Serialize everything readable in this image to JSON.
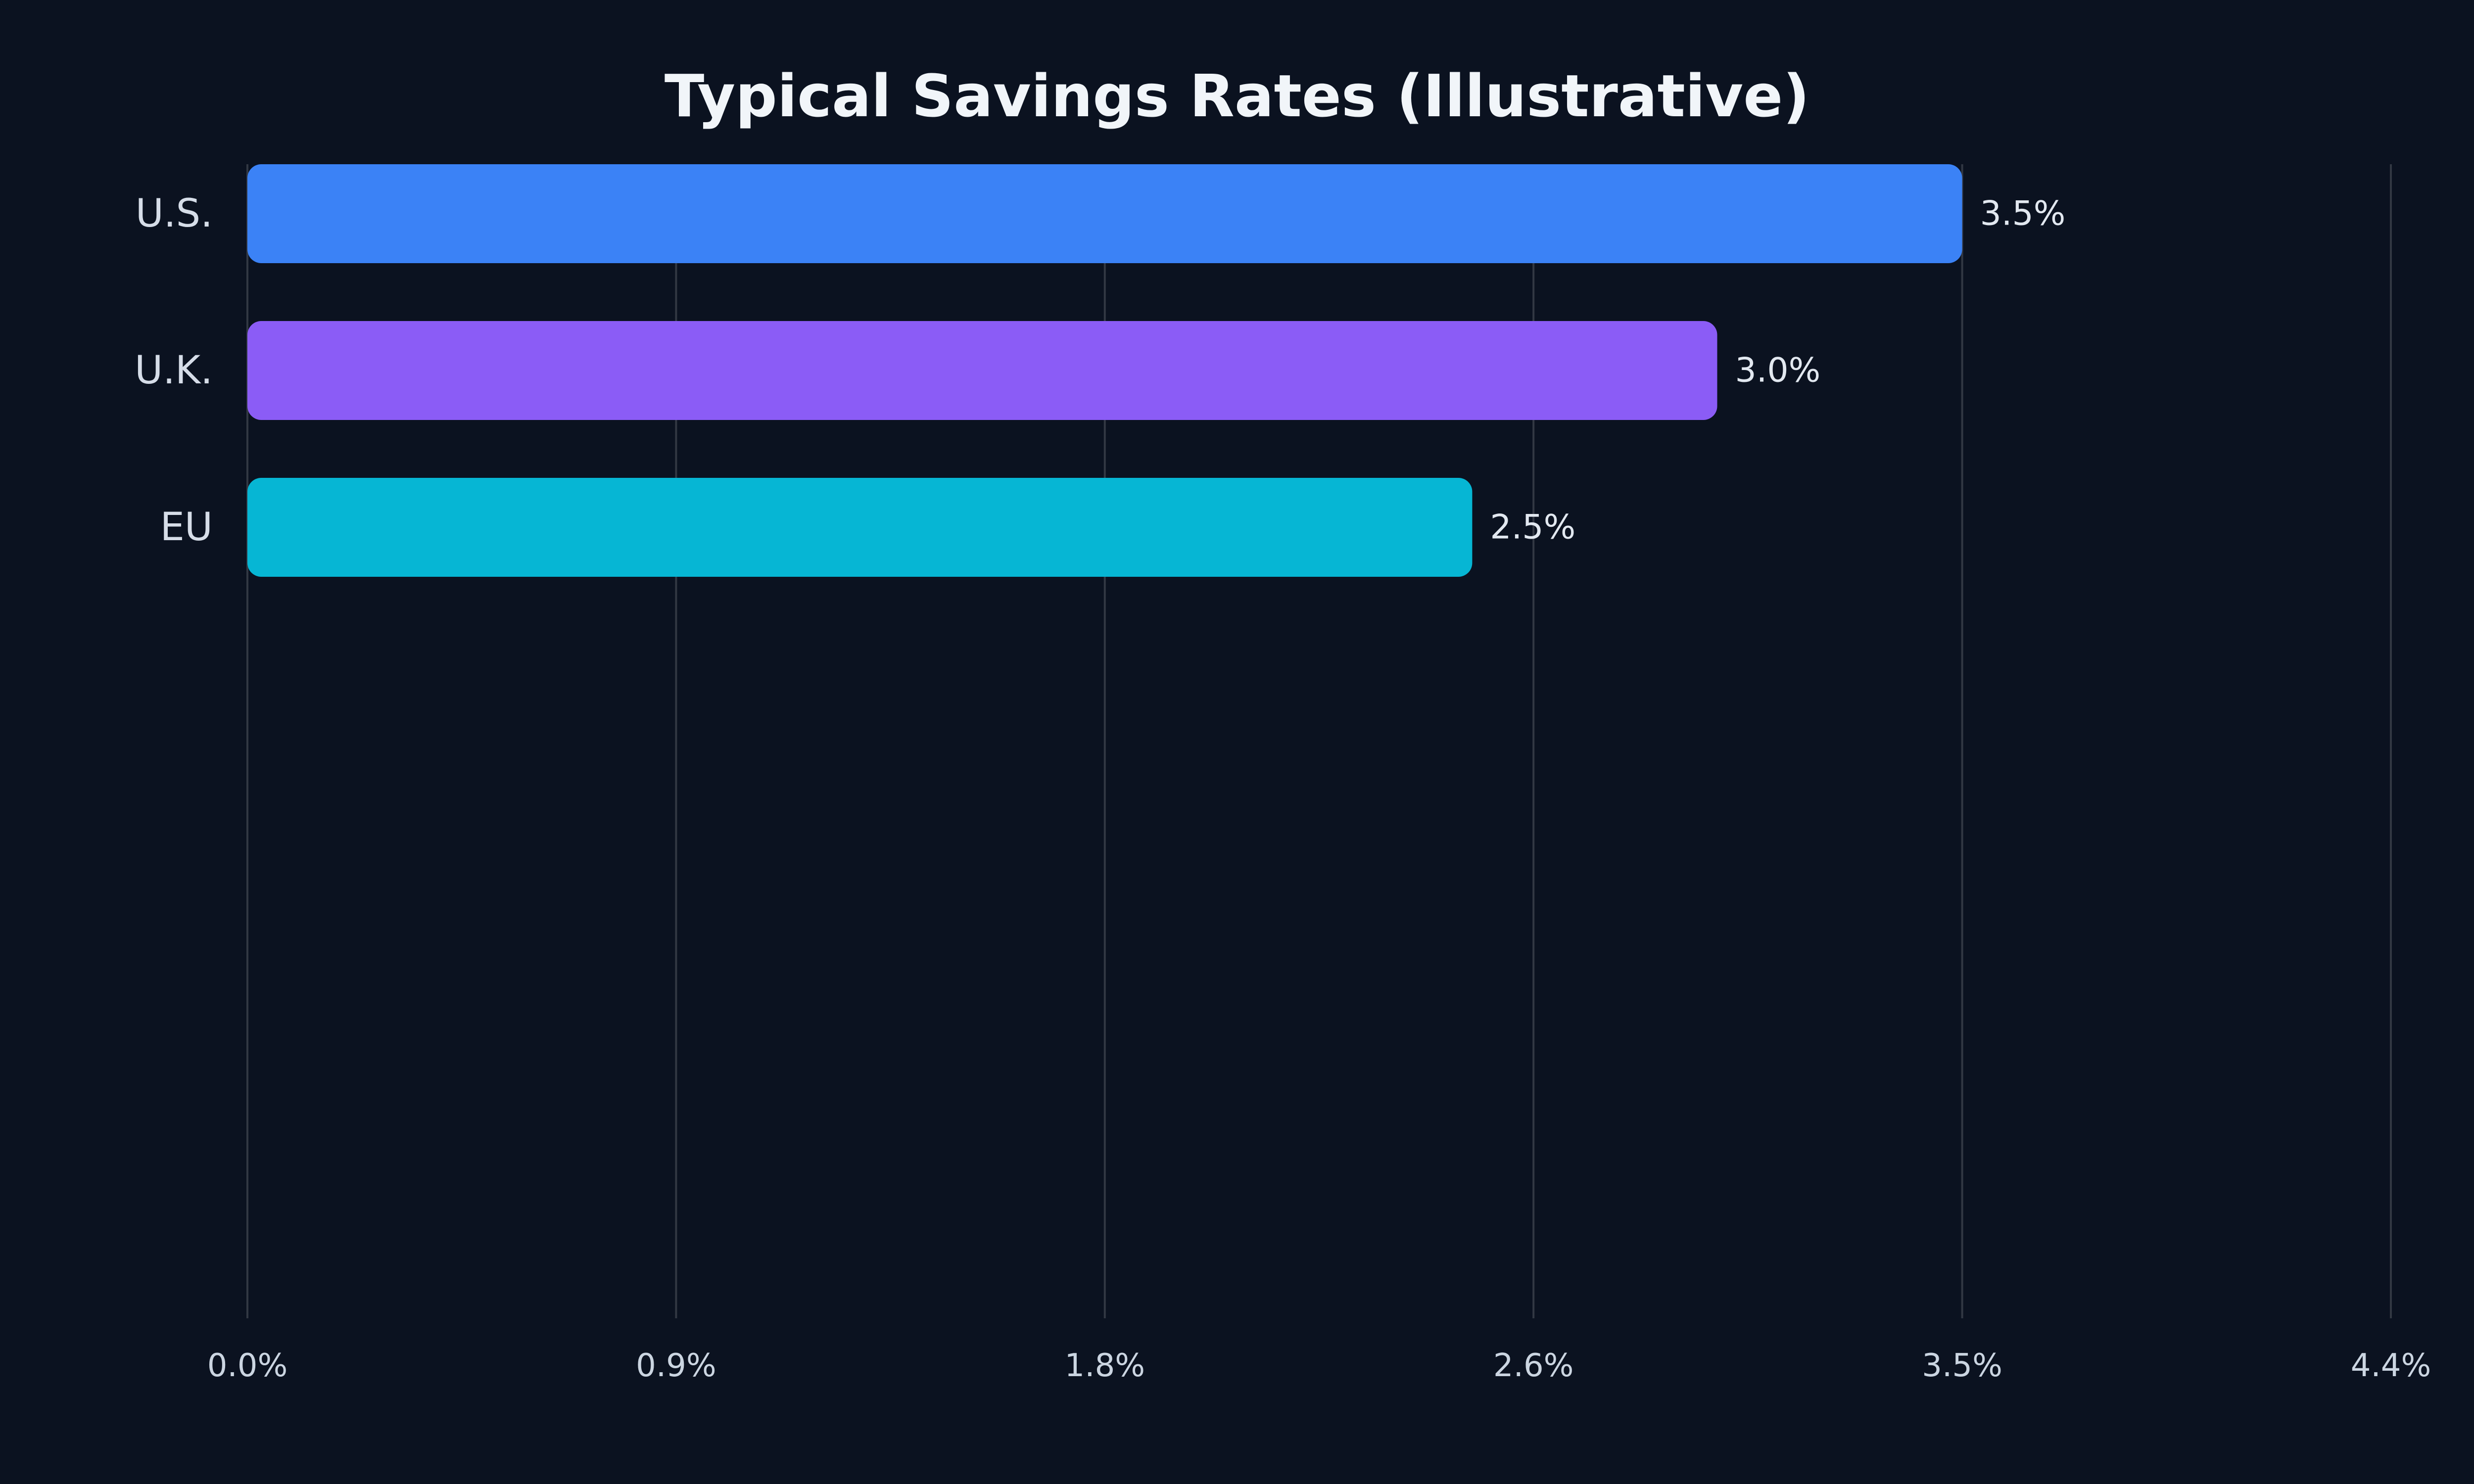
{
  "chart_data": {
    "type": "bar",
    "orientation": "horizontal",
    "title": "Typical Savings Rates (Illustrative)",
    "xlabel": "",
    "ylabel": "",
    "categories": [
      "U.S.",
      "U.K.",
      "EU"
    ],
    "values": [
      3.5,
      3.0,
      2.5
    ],
    "value_labels": [
      "3.5%",
      "3.0%",
      "2.5%"
    ],
    "colors": [
      "#3b82f6",
      "#8b5cf6",
      "#06b6d4"
    ],
    "xlim": [
      0,
      4.375
    ],
    "x_ticks": [
      0,
      0.875,
      1.75,
      2.625,
      3.5,
      4.375
    ],
    "x_tick_labels": [
      "0.0%",
      "0.9%",
      "1.8%",
      "2.6%",
      "3.5%",
      "4.4%"
    ],
    "grid": "vertical",
    "legend": "none",
    "background": "#0b1220"
  }
}
